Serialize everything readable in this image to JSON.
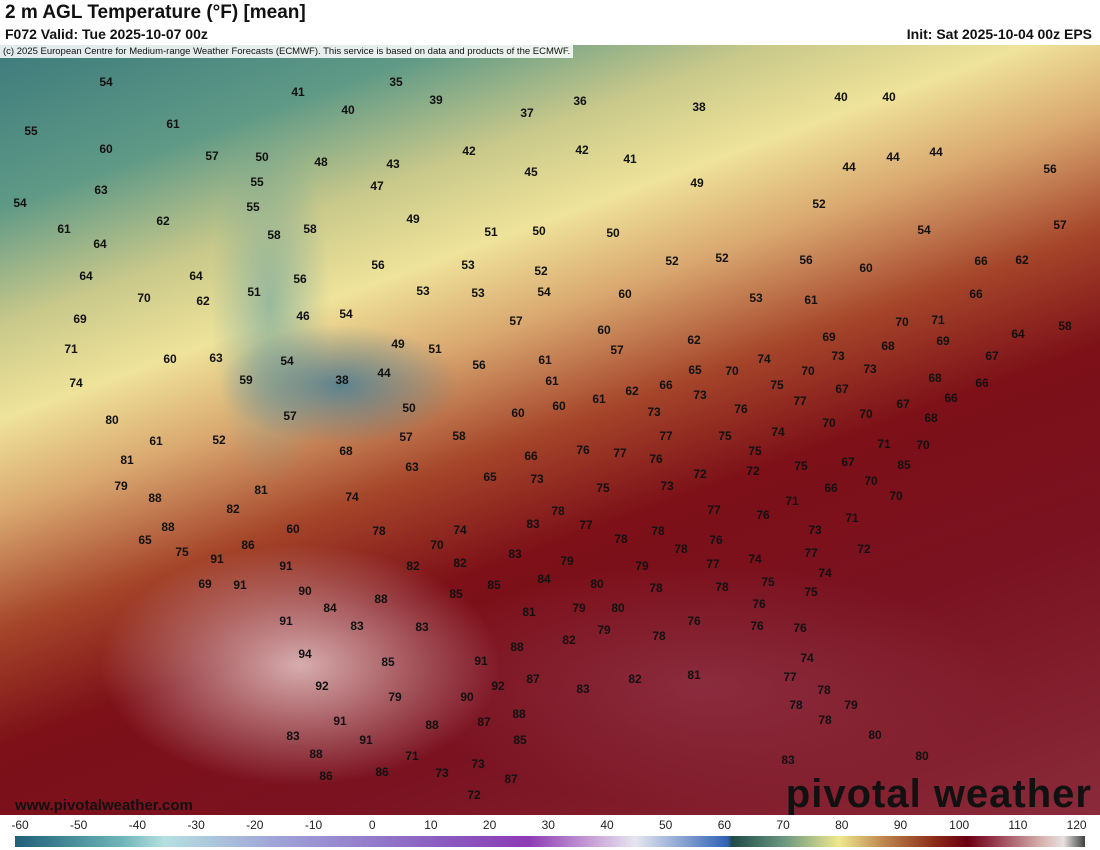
{
  "header": {
    "title": "2 m AGL Temperature (°F) [mean]",
    "valid": "F072 Valid: Tue 2025-10-07 00z",
    "init": "Init: Sat 2025-10-04 00z EPS"
  },
  "copyright": "(c) 2025 European Centre for Medium-range Weather Forecasts (ECMWF). This service is based on data and products of the ECMWF.",
  "footer": {
    "url": "www.pivotalweather.com",
    "logo": "pivotal weather"
  },
  "colorbar": {
    "ticks": [
      "-60",
      "-50",
      "-40",
      "-30",
      "-20",
      "-10",
      "0",
      "10",
      "20",
      "30",
      "40",
      "50",
      "60",
      "70",
      "80",
      "90",
      "100",
      "110",
      "120"
    ]
  },
  "map": {
    "temps": [
      "54",
      "35",
      "41",
      "40",
      "39",
      "36",
      "37",
      "38",
      "40",
      "40",
      "55",
      "61",
      "60",
      "57",
      "50",
      "48",
      "43",
      "42",
      "42",
      "41",
      "45",
      "44",
      "44",
      "44",
      "56",
      "63",
      "55",
      "47",
      "49",
      "54",
      "55",
      "52",
      "61",
      "62",
      "58",
      "58",
      "49",
      "51",
      "50",
      "50",
      "54",
      "57",
      "64",
      "56",
      "52",
      "52",
      "60",
      "66",
      "62",
      "64",
      "64",
      "56",
      "56",
      "53",
      "52",
      "70",
      "62",
      "51",
      "53",
      "53",
      "54",
      "60",
      "53",
      "61",
      "66",
      "69",
      "46",
      "54",
      "57",
      "60",
      "70",
      "71",
      "64",
      "58",
      "71",
      "60",
      "63",
      "54",
      "49",
      "51",
      "62",
      "69",
      "68",
      "69",
      "67",
      "74",
      "59",
      "38",
      "44",
      "56",
      "61",
      "57",
      "65",
      "70",
      "74",
      "75",
      "70",
      "73",
      "73",
      "68",
      "66",
      "61",
      "66",
      "62",
      "61",
      "73",
      "77",
      "67",
      "66",
      "67",
      "80",
      "57",
      "50",
      "60",
      "60",
      "73",
      "76",
      "70",
      "68",
      "61",
      "52",
      "57",
      "58",
      "76",
      "77",
      "77",
      "75",
      "74",
      "70",
      "71",
      "70",
      "81",
      "68",
      "63",
      "66",
      "76",
      "75",
      "72",
      "75",
      "67",
      "85",
      "79",
      "81",
      "65",
      "73",
      "75",
      "73",
      "72",
      "66",
      "70",
      "70",
      "88",
      "82",
      "74",
      "78",
      "77",
      "71",
      "76",
      "71",
      "88",
      "60",
      "78",
      "74",
      "83",
      "77",
      "78",
      "78",
      "73",
      "65",
      "86",
      "70",
      "78",
      "76",
      "74",
      "77",
      "72",
      "75",
      "91",
      "83",
      "79",
      "80",
      "79",
      "77",
      "74",
      "91",
      "82",
      "82",
      "84",
      "85",
      "91",
      "69",
      "90",
      "78",
      "78",
      "75",
      "75",
      "84",
      "88",
      "85",
      "81",
      "79",
      "80",
      "76",
      "91",
      "83",
      "83",
      "79",
      "78",
      "76",
      "76",
      "76",
      "82",
      "88",
      "94",
      "85",
      "91",
      "74",
      "92",
      "83",
      "82",
      "81",
      "87",
      "92",
      "77",
      "78",
      "79",
      "90",
      "88",
      "78",
      "79",
      "91",
      "88",
      "87",
      "78",
      "83",
      "91",
      "85",
      "80",
      "88",
      "71",
      "73",
      "80",
      "86",
      "86",
      "73",
      "87",
      "83",
      "72"
    ]
  }
}
